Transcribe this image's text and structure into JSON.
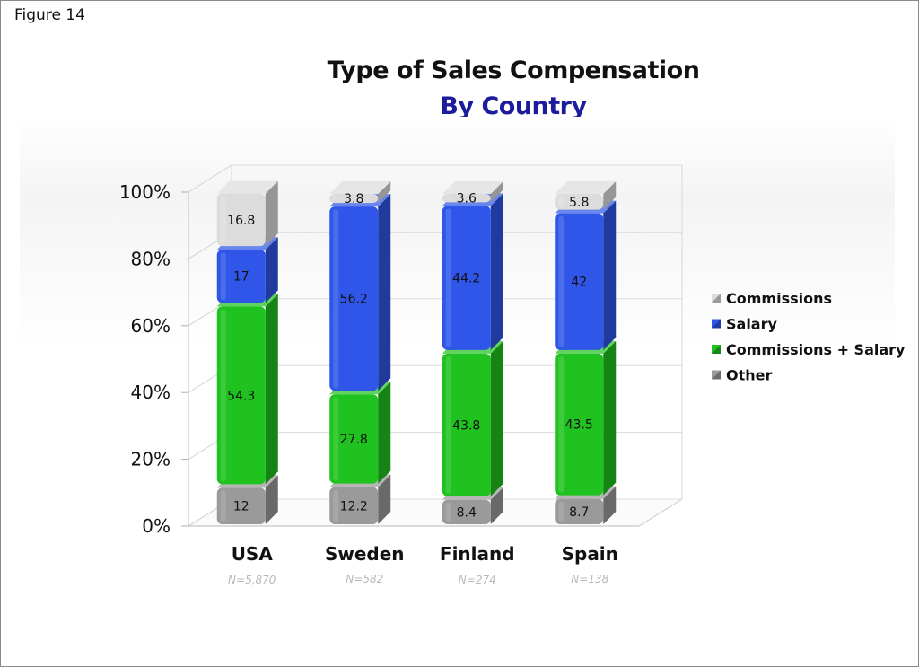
{
  "figure_label": "Figure 14",
  "chart_data": {
    "type": "bar",
    "stacked": true,
    "title": "Type of Sales Compensation",
    "subtitle": "By Country",
    "categories": [
      "USA",
      "Sweden",
      "Finland",
      "Spain"
    ],
    "category_notes": [
      "N=5,870",
      "N=582",
      "N=274",
      "N=138"
    ],
    "series": [
      {
        "name": "Other",
        "values": [
          12,
          12.2,
          8.4,
          8.7
        ],
        "color": "#9a9a9a"
      },
      {
        "name": "Commissions + Salary",
        "values": [
          54.3,
          27.8,
          43.8,
          43.5
        ],
        "color": "#1fc21f"
      },
      {
        "name": "Salary",
        "values": [
          17,
          56.2,
          44.2,
          42
        ],
        "color": "#2f56e8"
      },
      {
        "name": "Commissions",
        "values": [
          16.8,
          3.8,
          3.6,
          5.8
        ],
        "color": "#dcdcdc"
      }
    ],
    "legend_order": [
      "Commissions",
      "Salary",
      "Commissions + Salary",
      "Other"
    ],
    "legend_position": "right",
    "yticks": [
      "0%",
      "20%",
      "40%",
      "60%",
      "80%",
      "100%"
    ],
    "ylim": [
      0,
      100
    ],
    "grid": true
  }
}
